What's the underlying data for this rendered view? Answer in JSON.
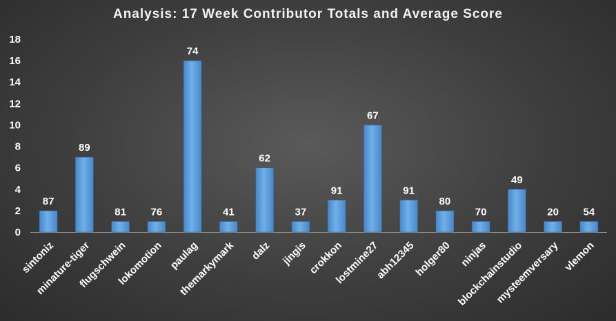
{
  "chart_data": {
    "type": "bar",
    "title": "Analysis:  17 Week Contributor Totals and Average Score",
    "categories": [
      "sintoniz",
      "minature-tiger",
      "flugschwein",
      "lokomotion",
      "paulag",
      "themarkymark",
      "dalz",
      "jingis",
      "crokkon",
      "lostmine27",
      "abh12345",
      "holger80",
      "ninjas",
      "blockchainstudio",
      "mysteemversary",
      "vlemon"
    ],
    "series": [
      {
        "values": [
          2,
          7,
          1,
          1,
          16,
          1,
          6,
          1,
          3,
          10,
          3,
          2,
          1,
          4,
          1,
          1
        ]
      }
    ],
    "data_labels": [
      "87",
      "89",
      "81",
      "76",
      "74",
      "41",
      "62",
      "37",
      "91",
      "67",
      "91",
      "80",
      "70",
      "49",
      "20",
      "54"
    ],
    "ylim": [
      0,
      18
    ],
    "yticks": [
      0,
      2,
      4,
      6,
      8,
      10,
      12,
      14,
      16,
      18
    ],
    "grid": false,
    "legend": "none",
    "bar_color": "#5b9bd5",
    "background_color": "#404040",
    "text_color": "#ffffff"
  }
}
